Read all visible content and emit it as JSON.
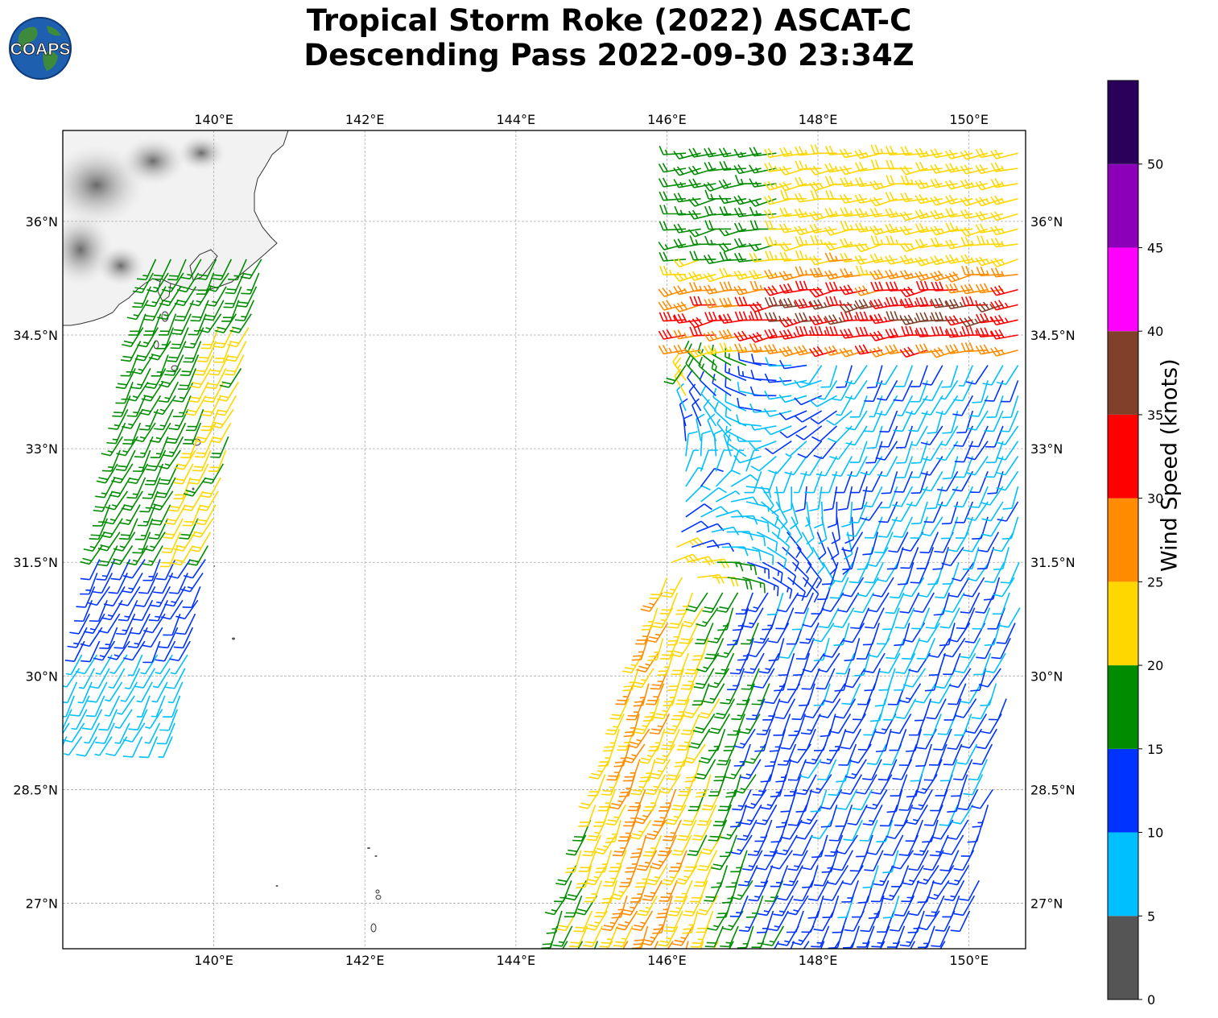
{
  "title": {
    "line1": "Tropical Storm Roke (2022) ASCAT-C",
    "line2": "Descending Pass 2022-09-30 23:34Z"
  },
  "logo": {
    "text": "COAPS",
    "icon": "globe-logo-icon"
  },
  "map": {
    "lon_range": [
      138.0,
      150.75
    ],
    "lat_range": [
      26.4,
      37.2
    ],
    "lon_ticks": [
      {
        "value": 140,
        "label": "140°E"
      },
      {
        "value": 142,
        "label": "142°E"
      },
      {
        "value": 144,
        "label": "144°E"
      },
      {
        "value": 146,
        "label": "146°E"
      },
      {
        "value": 148,
        "label": "148°E"
      },
      {
        "value": 150,
        "label": "150°E"
      }
    ],
    "lat_ticks": [
      {
        "value": 36,
        "label": "36°N"
      },
      {
        "value": 34.5,
        "label": "34.5°N"
      },
      {
        "value": 33,
        "label": "33°N"
      },
      {
        "value": 31.5,
        "label": "31.5°N"
      },
      {
        "value": 30,
        "label": "30°N"
      },
      {
        "value": 28.5,
        "label": "28.5°N"
      },
      {
        "value": 27,
        "label": "27°N"
      }
    ],
    "grid": true,
    "storm_center": {
      "lon": 147.1,
      "lat": 32.7
    }
  },
  "colorbar": {
    "label": "Wind Speed (knots)",
    "range": [
      0,
      55
    ],
    "ticks": [
      {
        "value": 0,
        "label": "0"
      },
      {
        "value": 5,
        "label": "5"
      },
      {
        "value": 10,
        "label": "10"
      },
      {
        "value": 15,
        "label": "15"
      },
      {
        "value": 20,
        "label": "20"
      },
      {
        "value": 25,
        "label": "25"
      },
      {
        "value": 30,
        "label": "30"
      },
      {
        "value": 35,
        "label": "35"
      },
      {
        "value": 40,
        "label": "40"
      },
      {
        "value": 45,
        "label": "45"
      },
      {
        "value": 50,
        "label": "50"
      }
    ],
    "bins": [
      {
        "from": 0,
        "to": 5,
        "color": "#555555"
      },
      {
        "from": 5,
        "to": 10,
        "color": "#00bfff"
      },
      {
        "from": 10,
        "to": 15,
        "color": "#0033ff"
      },
      {
        "from": 15,
        "to": 20,
        "color": "#008c00"
      },
      {
        "from": 20,
        "to": 25,
        "color": "#ffd700"
      },
      {
        "from": 25,
        "to": 30,
        "color": "#ff8c00"
      },
      {
        "from": 30,
        "to": 35,
        "color": "#ff0000"
      },
      {
        "from": 35,
        "to": 40,
        "color": "#80402a"
      },
      {
        "from": 40,
        "to": 45,
        "color": "#ff00ff"
      },
      {
        "from": 45,
        "to": 50,
        "color": "#8b00b8"
      },
      {
        "from": 50,
        "to": 55,
        "color": "#2a005a"
      }
    ]
  },
  "wind_swaths": [
    {
      "name": "west",
      "lon_min": 138.0,
      "lon_max": 140.9,
      "lat_min": 29.2,
      "lat_max": 35.6
    },
    {
      "name": "east",
      "lon_min": 144.4,
      "lon_max": 150.75,
      "lat_min": 26.4,
      "lat_max": 37.2
    }
  ]
}
